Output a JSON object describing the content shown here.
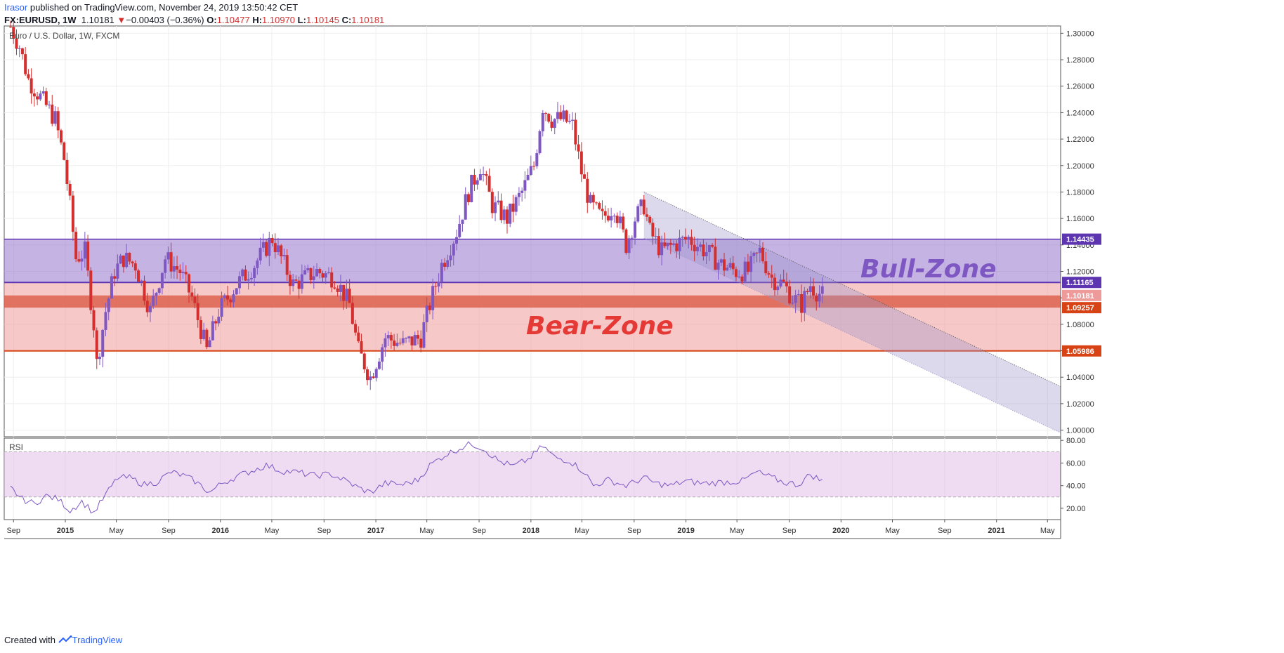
{
  "header": {
    "user": "Irasor",
    "published_text": " published on TradingView.com, November 24, 2019 13:50:42 CET",
    "symbol": "FX:EURUSD, 1W",
    "price": "1.10181",
    "change_arrow": "▼",
    "change": "−0.00403 (−0.36%)",
    "o_label": "O:",
    "o_value": "1.10477",
    "h_label": "H:",
    "h_value": "1.10970",
    "l_label": "L:",
    "l_value": "1.10145",
    "c_label": "C:",
    "c_value": "1.10181"
  },
  "footer": {
    "created_with": "Created with",
    "brand": "TradingView"
  },
  "colors": {
    "up": "#7e57c2",
    "down": "#d32f2f",
    "bull_zone": "#9575cd",
    "bear_zone": "#ef9a9a",
    "channel": "#9c93c9",
    "rsi_line": "#7e57c2",
    "rsi_band": "#e1bee7",
    "grid": "#eeeeee"
  },
  "chart_data": [
    {
      "type": "candlestick",
      "title": "Euro / U.S. Dollar, 1W, FXCM",
      "symbol": "FX:EURUSD",
      "timeframe": "1W",
      "ylim": [
        0.995,
        1.3055
      ],
      "x_ticks": [
        "Sep",
        "2015",
        "May",
        "Sep",
        "2016",
        "May",
        "Sep",
        "2017",
        "May",
        "Sep",
        "2018",
        "May",
        "Sep",
        "2019",
        "May",
        "Sep",
        "2020",
        "May",
        "Sep",
        "2021",
        "May"
      ],
      "y_ticks": [
        "1.30000",
        "1.28000",
        "1.26000",
        "1.24000",
        "1.22000",
        "1.20000",
        "1.18000",
        "1.16000",
        "1.14000",
        "1.12000",
        "1.10000",
        "1.08000",
        "1.06000",
        "1.04000",
        "1.02000",
        "1.00000"
      ],
      "price_series": [
        [
          "2014-08-25",
          1.305
        ],
        [
          "2014-09-15",
          1.29
        ],
        [
          "2014-10-06",
          1.265
        ],
        [
          "2014-10-27",
          1.255
        ],
        [
          "2014-11-17",
          1.245
        ],
        [
          "2014-12-08",
          1.235
        ],
        [
          "2014-12-29",
          1.205
        ],
        [
          "2015-01-12",
          1.17
        ],
        [
          "2015-01-26",
          1.13
        ],
        [
          "2015-02-16",
          1.135
        ],
        [
          "2015-03-09",
          1.08
        ],
        [
          "2015-03-16",
          1.05
        ],
        [
          "2015-04-06",
          1.09
        ],
        [
          "2015-04-27",
          1.12
        ],
        [
          "2015-05-18",
          1.13
        ],
        [
          "2015-06-15",
          1.125
        ],
        [
          "2015-07-20",
          1.09
        ],
        [
          "2015-08-24",
          1.13
        ],
        [
          "2015-09-28",
          1.12
        ],
        [
          "2015-10-26",
          1.1
        ],
        [
          "2015-11-30",
          1.06
        ],
        [
          "2015-12-28",
          1.09
        ],
        [
          "2016-02-08",
          1.11
        ],
        [
          "2016-03-21",
          1.125
        ],
        [
          "2016-05-02",
          1.145
        ],
        [
          "2016-06-20",
          1.11
        ],
        [
          "2016-08-15",
          1.12
        ],
        [
          "2016-09-26",
          1.115
        ],
        [
          "2016-10-31",
          1.095
        ],
        [
          "2016-11-21",
          1.06
        ],
        [
          "2016-12-19",
          1.04
        ],
        [
          "2017-01-23",
          1.07
        ],
        [
          "2017-03-06",
          1.065
        ],
        [
          "2017-04-17",
          1.07
        ],
        [
          "2017-05-08",
          1.095
        ],
        [
          "2017-06-05",
          1.125
        ],
        [
          "2017-07-10",
          1.15
        ],
        [
          "2017-08-07",
          1.18
        ],
        [
          "2017-09-04",
          1.2
        ],
        [
          "2017-10-02",
          1.17
        ],
        [
          "2017-11-06",
          1.16
        ],
        [
          "2017-12-11",
          1.18
        ],
        [
          "2018-01-08",
          1.2
        ],
        [
          "2018-01-29",
          1.245
        ],
        [
          "2018-02-19",
          1.235
        ],
        [
          "2018-03-19",
          1.235
        ],
        [
          "2018-04-09",
          1.23
        ],
        [
          "2018-04-30",
          1.195
        ],
        [
          "2018-05-21",
          1.17
        ],
        [
          "2018-06-18",
          1.16
        ],
        [
          "2018-07-16",
          1.17
        ],
        [
          "2018-08-13",
          1.14
        ],
        [
          "2018-09-03",
          1.16
        ],
        [
          "2018-09-24",
          1.17
        ],
        [
          "2018-10-08",
          1.15
        ],
        [
          "2018-11-05",
          1.135
        ],
        [
          "2018-12-03",
          1.14
        ],
        [
          "2019-01-07",
          1.145
        ],
        [
          "2019-02-18",
          1.135
        ],
        [
          "2019-03-25",
          1.125
        ],
        [
          "2019-04-29",
          1.12
        ],
        [
          "2019-05-27",
          1.12
        ],
        [
          "2019-06-24",
          1.135
        ],
        [
          "2019-07-22",
          1.115
        ],
        [
          "2019-08-19",
          1.11
        ],
        [
          "2019-09-09",
          1.1
        ],
        [
          "2019-09-30",
          1.095
        ],
        [
          "2019-10-21",
          1.11
        ],
        [
          "2019-11-04",
          1.105
        ],
        [
          "2019-11-18",
          1.1018
        ]
      ],
      "zones": [
        {
          "label": "Bull-Zone",
          "from": 1.11165,
          "to": 1.14435
        },
        {
          "label": "Bear-Zone",
          "from": 1.05986,
          "to": 1.11165
        }
      ],
      "highlight_band": [
        1.09257,
        1.10181
      ],
      "channel": {
        "start": [
          "2018-09-24",
          1.18
        ],
        "upper_end": [
          "2021-06-01",
          1.033
        ],
        "lower_end": [
          "2021-06-01",
          0.998
        ]
      },
      "price_labels": [
        {
          "value": 1.14435,
          "label": "1.14435"
        },
        {
          "value": 1.11165,
          "label": "1.11165"
        },
        {
          "value": 1.10181,
          "label": "1.10181"
        },
        {
          "value": 1.09257,
          "label": "1.09257"
        },
        {
          "value": 1.05986,
          "label": "1.05986"
        }
      ]
    },
    {
      "type": "line",
      "title": "RSI",
      "ylim": [
        10,
        82
      ],
      "y_ticks": [
        "80.00",
        "60.00",
        "40.00",
        "20.00"
      ],
      "band": [
        30,
        70
      ],
      "series": [
        {
          "points": [
            [
              "2014-08-25",
              38
            ],
            [
              "2014-09-22",
              28
            ],
            [
              "2014-10-20",
              24
            ],
            [
              "2014-11-17",
              31
            ],
            [
              "2014-12-15",
              28
            ],
            [
              "2015-01-12",
              18
            ],
            [
              "2015-02-09",
              26
            ],
            [
              "2015-03-09",
              16
            ],
            [
              "2015-04-06",
              32
            ],
            [
              "2015-05-04",
              47
            ],
            [
              "2015-06-01",
              47
            ],
            [
              "2015-07-06",
              41
            ],
            [
              "2015-08-03",
              43
            ],
            [
              "2015-09-07",
              52
            ],
            [
              "2015-10-05",
              49
            ],
            [
              "2015-11-02",
              44
            ],
            [
              "2015-12-07",
              34
            ],
            [
              "2016-01-04",
              42
            ],
            [
              "2016-02-08",
              48
            ],
            [
              "2016-03-14",
              53
            ],
            [
              "2016-04-18",
              58
            ],
            [
              "2016-05-23",
              53
            ],
            [
              "2016-06-27",
              52
            ],
            [
              "2016-08-08",
              49
            ],
            [
              "2016-09-19",
              50
            ],
            [
              "2016-10-24",
              44
            ],
            [
              "2016-11-21",
              38
            ],
            [
              "2016-12-19",
              34
            ],
            [
              "2017-01-23",
              42
            ],
            [
              "2017-03-06",
              41
            ],
            [
              "2017-04-10",
              45
            ],
            [
              "2017-05-08",
              58
            ],
            [
              "2017-06-12",
              67
            ],
            [
              "2017-07-17",
              73
            ],
            [
              "2017-08-14",
              77
            ],
            [
              "2017-09-11",
              73
            ],
            [
              "2017-10-16",
              62
            ],
            [
              "2017-11-20",
              57
            ],
            [
              "2017-12-25",
              63
            ],
            [
              "2018-01-29",
              75
            ],
            [
              "2018-02-26",
              65
            ],
            [
              "2018-04-02",
              62
            ],
            [
              "2018-05-07",
              52
            ],
            [
              "2018-05-28",
              40
            ],
            [
              "2018-07-02",
              45
            ],
            [
              "2018-08-13",
              40
            ],
            [
              "2018-09-24",
              47
            ],
            [
              "2018-10-22",
              42
            ],
            [
              "2018-11-26",
              40
            ],
            [
              "2018-12-31",
              44
            ],
            [
              "2019-02-11",
              42
            ],
            [
              "2019-03-25",
              43
            ],
            [
              "2019-05-13",
              44
            ],
            [
              "2019-06-17",
              52
            ],
            [
              "2019-07-22",
              47
            ],
            [
              "2019-08-19",
              43
            ],
            [
              "2019-09-23",
              41
            ],
            [
              "2019-10-21",
              50
            ],
            [
              "2019-11-18",
              44
            ]
          ]
        }
      ]
    }
  ]
}
